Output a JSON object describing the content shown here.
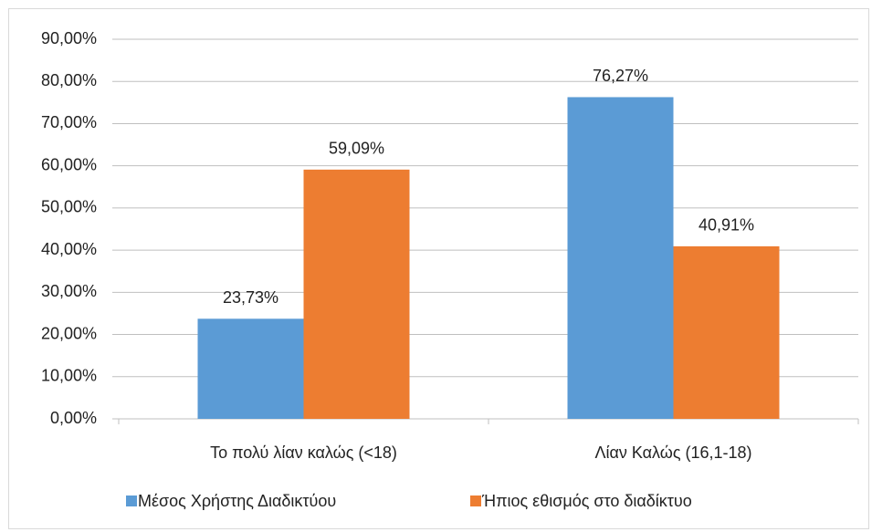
{
  "chart_data": {
    "type": "bar",
    "categories": [
      "Το πολύ λίαν καλώς (<18)",
      "Λίαν Καλώς (16,1-18)"
    ],
    "series": [
      {
        "name": "Μέσος Χρήστης Διαδικτύου",
        "color": "#5b9bd5",
        "values": [
          23.73,
          76.27
        ],
        "value_labels": [
          "23,73%",
          "76,27%"
        ]
      },
      {
        "name": "Ήπιος εθισμός στο διαδίκτυο",
        "color": "#ed7d31",
        "values": [
          59.09,
          40.91
        ],
        "value_labels": [
          "59,09%",
          "40,91%"
        ]
      }
    ],
    "ylim": [
      0,
      90
    ],
    "yticks": [
      {
        "value": 0,
        "label": "0,00%"
      },
      {
        "value": 10,
        "label": "10,00%"
      },
      {
        "value": 20,
        "label": "20,00%"
      },
      {
        "value": 30,
        "label": "30,00%"
      },
      {
        "value": 40,
        "label": "40,00%"
      },
      {
        "value": 50,
        "label": "50,00%"
      },
      {
        "value": 60,
        "label": "60,00%"
      },
      {
        "value": 70,
        "label": "70,00%"
      },
      {
        "value": 80,
        "label": "80,00%"
      },
      {
        "value": 90,
        "label": "90,00%"
      }
    ],
    "grid": true
  }
}
